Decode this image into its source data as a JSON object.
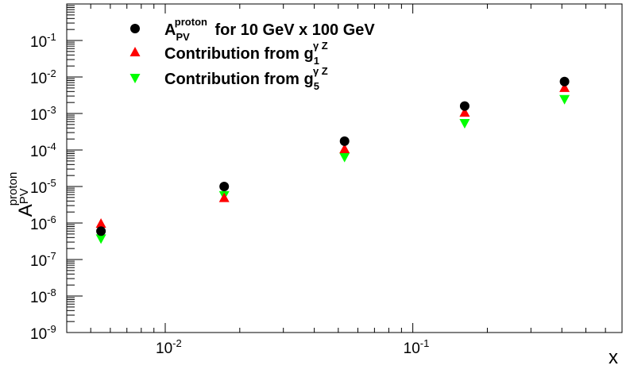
{
  "chart_data": {
    "type": "scatter",
    "x_scale": "log",
    "y_scale": "log",
    "xlim": [
      0.004,
      0.7
    ],
    "ylim": [
      1e-09,
      1
    ],
    "xlabel": "x",
    "ylabel": {
      "base": "A",
      "sup": "proton",
      "sub": "PV"
    },
    "x_ticks": [
      {
        "value": 0.01,
        "base": "10",
        "exp": "-2"
      },
      {
        "value": 0.1,
        "base": "10",
        "exp": "-1"
      }
    ],
    "y_ticks": [
      {
        "value": 1e-09,
        "base": "10",
        "exp": "-9"
      },
      {
        "value": 1e-08,
        "base": "10",
        "exp": "-8"
      },
      {
        "value": 1e-07,
        "base": "10",
        "exp": "-7"
      },
      {
        "value": 1e-06,
        "base": "10",
        "exp": "-6"
      },
      {
        "value": 1e-05,
        "base": "10",
        "exp": "-5"
      },
      {
        "value": 0.0001,
        "base": "10",
        "exp": "-4"
      },
      {
        "value": 0.001,
        "base": "10",
        "exp": "-3"
      },
      {
        "value": 0.01,
        "base": "10",
        "exp": "-2"
      },
      {
        "value": 0.1,
        "base": "10",
        "exp": "-1"
      }
    ],
    "legend_position": "top-left",
    "series": [
      {
        "marker": "circle",
        "color": "#000000",
        "legend": {
          "pre": "A",
          "sup": "proton",
          "sub": "PV",
          "post": " for 10 GeV x 100 GeV"
        },
        "x": [
          0.0055,
          0.0173,
          0.053,
          0.162,
          0.41
        ],
        "y": [
          6e-07,
          1e-05,
          0.000175,
          0.0016,
          0.0075
        ]
      },
      {
        "marker": "triangle-up",
        "color": "#ff0000",
        "legend": {
          "pre": "Contribution from g",
          "sup": "γ Z",
          "sub": "1",
          "post": ""
        },
        "x": [
          0.0055,
          0.0173,
          0.053,
          0.162,
          0.41
        ],
        "y": [
          9.5e-07,
          4.8e-06,
          0.000105,
          0.00105,
          0.005
        ]
      },
      {
        "marker": "triangle-down",
        "color": "#00ff00",
        "legend": {
          "pre": "Contribution from g",
          "sup": "γ Z",
          "sub": "5",
          "post": ""
        },
        "x": [
          0.0055,
          0.0173,
          0.053,
          0.162,
          0.41
        ],
        "y": [
          3.8e-07,
          5.8e-06,
          6.5e-05,
          0.00055,
          0.0025
        ]
      }
    ]
  }
}
